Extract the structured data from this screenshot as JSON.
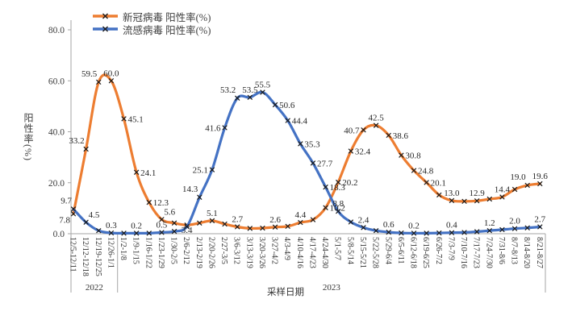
{
  "chart_data": {
    "type": "line",
    "title": "",
    "smooth": true,
    "marker": "x",
    "marker_color": "#1a1a1a",
    "axis_color": "#a6a6a6",
    "grid": false,
    "legend_position": "top-left-inside",
    "xlabel": "采样日期",
    "ylabel": "阳性率(%)",
    "ylim": [
      0,
      80
    ],
    "ytick_labels": [
      "0.0",
      "20.0",
      "40.0",
      "60.0",
      "80.0"
    ],
    "categories": [
      "12/5-12/11",
      "12/12-12/18",
      "12/19-12/25",
      "12/26-1/1",
      "1/2-1/8",
      "1/9-1/15",
      "1/16-1/22",
      "1/23-1/29",
      "1/30-2/5",
      "2/6-2/12",
      "2/13-2/19",
      "2/20-2/26",
      "2/27-3/5",
      "3/6-3/12",
      "3/13-3/19",
      "3/20-3/26",
      "3/27-4/2",
      "4/3-4/9",
      "4/10-4/16",
      "4/17-4/23",
      "4/24-4/30",
      "5/1-5/7",
      "5/8-5/14",
      "5/15-5/21",
      "5/22-5/28",
      "5/29-6/4",
      "6/5-6/11",
      "6/12-6/18",
      "6/19-6/25",
      "6/26-7/2",
      "7/3-7/9",
      "7/10-7/16",
      "7/17-7/23",
      "7/24-7/30",
      "7/31-8/6",
      "8/7-8/13",
      "8/14-8/20",
      "8/21-8/27"
    ],
    "year_groups": [
      {
        "label": "2022",
        "start": 0,
        "end": 3
      },
      {
        "label": "2023",
        "start": 4,
        "end": 37
      }
    ],
    "series": [
      {
        "name": "新冠病毒 阳性率(%)",
        "color": "#ED7D31",
        "values": [
          7.8,
          33.2,
          59.5,
          60.0,
          45.1,
          24.1,
          12.3,
          5.6,
          4.2,
          3.4,
          4.2,
          5.1,
          3.8,
          2.7,
          2.1,
          2.2,
          2.6,
          2.9,
          4.4,
          5.5,
          10.2,
          20.2,
          32.4,
          40.7,
          42.5,
          38.6,
          30.8,
          24.8,
          20.1,
          15.2,
          13.0,
          12.7,
          12.9,
          13.6,
          14.4,
          17.4,
          19.0,
          19.6
        ],
        "labels": [
          {
            "i": 0,
            "t": "7.8",
            "p": "bl"
          },
          {
            "i": 1,
            "t": "33.2",
            "p": "al"
          },
          {
            "i": 2,
            "t": "59.5",
            "p": "al"
          },
          {
            "i": 3,
            "t": "60.0",
            "p": "a"
          },
          {
            "i": 4,
            "t": "45.1",
            "p": "r"
          },
          {
            "i": 5,
            "t": "24.1",
            "p": "r"
          },
          {
            "i": 6,
            "t": "12.3",
            "p": "r"
          },
          {
            "i": 7,
            "t": "5.6",
            "p": "ar"
          },
          {
            "i": 9,
            "t": "3.4",
            "p": "b"
          },
          {
            "i": 11,
            "t": "5.1",
            "p": "a"
          },
          {
            "i": 13,
            "t": "2.7",
            "p": "a"
          },
          {
            "i": 16,
            "t": "2.6",
            "p": "a"
          },
          {
            "i": 18,
            "t": "4.4",
            "p": "a"
          },
          {
            "i": 20,
            "t": "10.2",
            "p": "r"
          },
          {
            "i": 21,
            "t": "20.2",
            "p": "r"
          },
          {
            "i": 22,
            "t": "32.4",
            "p": "r"
          },
          {
            "i": 23,
            "t": "40.7",
            "p": "l"
          },
          {
            "i": 24,
            "t": "42.5",
            "p": "a"
          },
          {
            "i": 25,
            "t": "38.6",
            "p": "r"
          },
          {
            "i": 26,
            "t": "30.8",
            "p": "r"
          },
          {
            "i": 27,
            "t": "24.8",
            "p": "r"
          },
          {
            "i": 28,
            "t": "20.1",
            "p": "r"
          },
          {
            "i": 30,
            "t": "13.0",
            "p": "a"
          },
          {
            "i": 32,
            "t": "12.9",
            "p": "a"
          },
          {
            "i": 34,
            "t": "14.4",
            "p": "a"
          },
          {
            "i": 36,
            "t": "19.0",
            "p": "al"
          },
          {
            "i": 37,
            "t": "19.6",
            "p": "a"
          }
        ]
      },
      {
        "name": "流感病毒 阳性率(%)",
        "color": "#4472C4",
        "values": [
          9.7,
          4.5,
          1.2,
          0.3,
          0.2,
          0.2,
          0.2,
          0.5,
          0.9,
          2.8,
          14.3,
          25.1,
          41.6,
          53.2,
          53.5,
          55.5,
          50.6,
          44.4,
          35.3,
          27.7,
          18.3,
          8.8,
          4.6,
          2.4,
          1.2,
          0.6,
          0.3,
          0.2,
          0.2,
          0.3,
          0.4,
          0.5,
          0.8,
          1.2,
          1.6,
          2.0,
          2.3,
          2.7
        ],
        "labels": [
          {
            "i": 0,
            "t": "9.7",
            "p": "al"
          },
          {
            "i": 1,
            "t": "4.5",
            "p": "ar"
          },
          {
            "i": 3,
            "t": "0.3",
            "p": "a"
          },
          {
            "i": 5,
            "t": "0.2",
            "p": "a"
          },
          {
            "i": 7,
            "t": "0.5",
            "p": "a"
          },
          {
            "i": 10,
            "t": "14.3",
            "p": "al"
          },
          {
            "i": 11,
            "t": "25.1",
            "p": "l"
          },
          {
            "i": 12,
            "t": "41.6",
            "p": "l"
          },
          {
            "i": 13,
            "t": "53.2",
            "p": "al"
          },
          {
            "i": 14,
            "t": "53.5",
            "p": "a"
          },
          {
            "i": 15,
            "t": "55.5",
            "p": "a"
          },
          {
            "i": 16,
            "t": "50.6",
            "p": "r"
          },
          {
            "i": 17,
            "t": "44.4",
            "p": "r"
          },
          {
            "i": 18,
            "t": "35.3",
            "p": "r"
          },
          {
            "i": 19,
            "t": "27.7",
            "p": "r"
          },
          {
            "i": 20,
            "t": "18.3",
            "p": "r"
          },
          {
            "i": 21,
            "t": "8.8",
            "p": "a"
          },
          {
            "i": 23,
            "t": "2.4",
            "p": "a"
          },
          {
            "i": 25,
            "t": "0.6",
            "p": "a"
          },
          {
            "i": 27,
            "t": "0.2",
            "p": "a"
          },
          {
            "i": 30,
            "t": "0.4",
            "p": "a"
          },
          {
            "i": 33,
            "t": "1.2",
            "p": "a"
          },
          {
            "i": 35,
            "t": "2.0",
            "p": "a"
          },
          {
            "i": 37,
            "t": "2.7",
            "p": "a"
          }
        ]
      }
    ]
  }
}
